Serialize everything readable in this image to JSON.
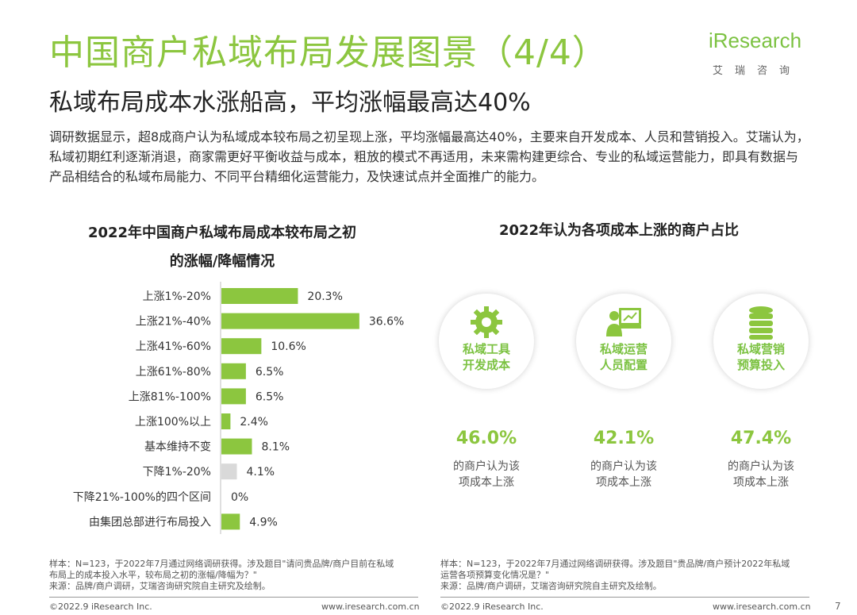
{
  "header": {
    "title": "中国商户私域布局发展图景（4/4）",
    "subtitle": "私域布局成本水涨船高，平均涨幅最高达40%",
    "logo_text": "iResearch",
    "logo_cn": "艾瑞咨询"
  },
  "body_text": "调研数据显示，超8成商户认为私域成本较布局之初呈现上涨，平均涨幅最高达40%，主要来自开发成本、人员和营销投入。艾瑞认为，私域初期红利逐渐消退，商家需更好平衡收益与成本，粗放的模式不再适用，未来需构建更综合、专业的私域运营能力，即具有数据与产品相结合的私域布局能力、不同平台精细化运营能力，及快速试点并全面推广的能力。",
  "chart_data": [
    {
      "type": "bar",
      "orientation": "horizontal",
      "title_line1": "2022年中国商户私域布局成本较布局之初",
      "title_line2": "的涨幅/降幅情况",
      "categories": [
        "上涨1%-20%",
        "上涨21%-40%",
        "上涨41%-60%",
        "上涨61%-80%",
        "上涨81%-100%",
        "上涨100%以上",
        "基本维持不变",
        "下降1%-20%",
        "下降21%-100%的四个区间",
        "由集团总部进行布局投入"
      ],
      "values": [
        20.3,
        36.6,
        10.6,
        6.5,
        6.5,
        2.4,
        8.1,
        4.1,
        0,
        4.9
      ],
      "value_labels": [
        "20.3%",
        "36.6%",
        "10.6%",
        "6.5%",
        "6.5%",
        "2.4%",
        "8.1%",
        "4.1%",
        "0%",
        "4.9%"
      ],
      "bar_colors": [
        "#8cc63f",
        "#8cc63f",
        "#8cc63f",
        "#8cc63f",
        "#8cc63f",
        "#8cc63f",
        "#8cc63f",
        "#d9d9d9",
        "#d9d9d9",
        "#8cc63f"
      ],
      "xlim": [
        0,
        40
      ],
      "grid": false
    },
    {
      "type": "table",
      "title": "2022年认为各项成本上涨的商户占比",
      "items": [
        {
          "label_line1": "私域工具",
          "label_line2": "开发成本",
          "icon": "gear-icon",
          "value": 46.0,
          "value_label": "46.0%",
          "desc_line1": "的商户认为该",
          "desc_line2": "项成本上涨"
        },
        {
          "label_line1": "私域运营",
          "label_line2": "人员配置",
          "icon": "presenter-icon",
          "value": 42.1,
          "value_label": "42.1%",
          "desc_line1": "的商户认为该",
          "desc_line2": "项成本上涨"
        },
        {
          "label_line1": "私域营销",
          "label_line2": "预算投入",
          "icon": "coins-icon",
          "value": 47.4,
          "value_label": "47.4%",
          "desc_line1": "的商户认为该",
          "desc_line2": "项成本上涨"
        }
      ]
    }
  ],
  "notes": {
    "left_line1": "样本：N=123，于2022年7月通过网络调研获得。涉及题目\"请问贵品牌/商户目前在私域",
    "left_line2": "布局上的成本投入水平，较布局之初的涨幅/降幅为？\"",
    "left_line3": "来源：品牌/商户调研，艾瑞咨询研究院自主研究及绘制。",
    "right_line1": "样本：N=123，于2022年7月通过网络调研获得。涉及题目\"贵品牌/商户预计2022年私域",
    "right_line2": "运营各项预算变化情况是？\"",
    "right_line3": "来源：品牌/商户调研，艾瑞咨询研究院自主研究及绘制。"
  },
  "footer": {
    "copyright": "©2022.9 iResearch Inc.",
    "url": "www.iresearch.com.cn",
    "page": "7"
  },
  "colors": {
    "accent": "#8cc63f",
    "gray_bar": "#d9d9d9"
  }
}
